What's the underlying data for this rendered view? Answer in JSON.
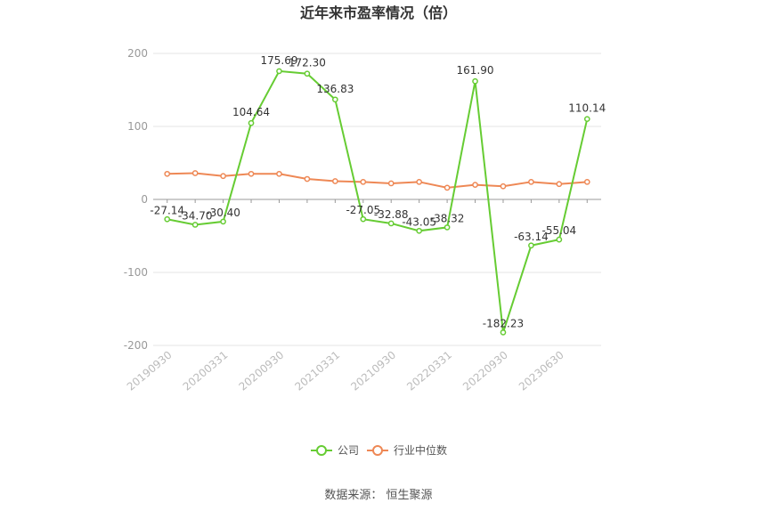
{
  "chart_data": {
    "type": "line",
    "title": "近年来市盈率情况（倍）",
    "categories": [
      "20190930",
      "20191231",
      "20200331",
      "20200630",
      "20200930",
      "20201231",
      "20210331",
      "20210630",
      "20210930",
      "20211231",
      "20220331",
      "20220630",
      "20220930",
      "20221231",
      "20230630",
      "20230930"
    ],
    "xtick_labels": [
      "20190930",
      "20200331",
      "20200930",
      "20210331",
      "20210930",
      "20220331",
      "20220930",
      "20230630"
    ],
    "series": [
      {
        "name": "公司",
        "color": "#66cc33",
        "values": [
          -27.14,
          -34.7,
          -30.4,
          104.64,
          175.69,
          172.3,
          136.83,
          -27.05,
          -32.88,
          -43.05,
          -38.32,
          161.9,
          -182.23,
          -63.14,
          -55.04,
          110.14
        ],
        "labels": [
          "-27.14",
          "-34.70",
          "-30.40",
          "104.64",
          "175.69",
          "172.30",
          "136.83",
          "-27.05",
          "-32.88",
          "-43.05",
          "-38.32",
          "161.90",
          "-182.23",
          "-63.14",
          "-55.04",
          "110.14"
        ]
      },
      {
        "name": "行业中位数",
        "color": "#ee8855",
        "values": [
          35,
          36,
          32,
          35,
          35,
          28,
          25,
          24,
          22,
          24,
          16,
          20,
          18,
          24,
          21,
          24
        ]
      }
    ],
    "ylim": [
      -200,
      200
    ],
    "yticks": [
      200,
      100,
      0,
      -100,
      -200
    ],
    "grid": true,
    "legend_position": "bottom-center"
  },
  "source_text": "数据来源：  恒生聚源"
}
